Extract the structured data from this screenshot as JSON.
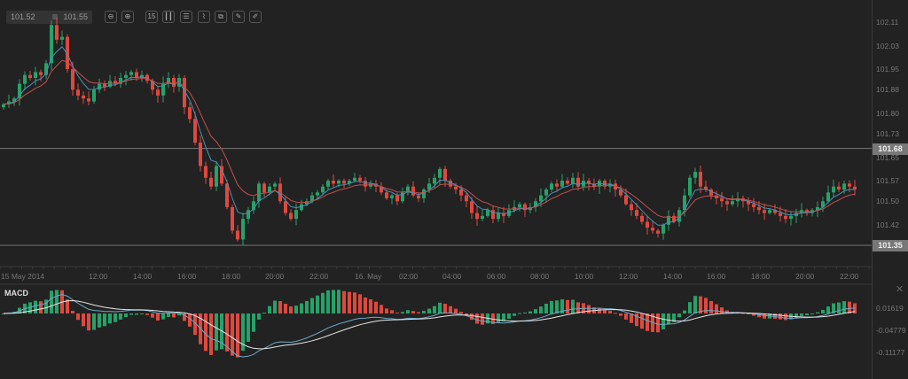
{
  "toolbar": {
    "bid": "101.52",
    "ask": "101.55",
    "buttons": [
      {
        "name": "zoom-out-icon",
        "glyph": "⊖"
      },
      {
        "name": "zoom-in-icon",
        "glyph": "⊕"
      },
      {
        "name": "timeframe-icon",
        "glyph": "15"
      },
      {
        "name": "candlestick-icon",
        "glyph": "┃┃"
      },
      {
        "name": "settings-sliders-icon",
        "glyph": "☰"
      },
      {
        "name": "indicator-icon",
        "glyph": "⌇"
      },
      {
        "name": "copy-icon",
        "glyph": "⧉"
      },
      {
        "name": "edit-icon",
        "glyph": "✎"
      },
      {
        "name": "draw-icon",
        "glyph": "✐"
      }
    ]
  },
  "chart_data": {
    "type": "candlestick",
    "interval": "15m",
    "ylim": [
      101.35,
      102.11
    ],
    "y_ticks": [
      "102.11",
      "102.03",
      "101.95",
      "101.88",
      "101.80",
      "101.73",
      "101.65",
      "101.57",
      "101.50",
      "101.42"
    ],
    "highlight_levels": [
      "101.68",
      "101.35"
    ],
    "x_ticks": [
      "15 May 2014",
      "12:00",
      "14:00",
      "16:00",
      "18:00",
      "20:00",
      "22:00",
      "16. May",
      "02:00",
      "04:00",
      "06:00",
      "08:00",
      "10:00",
      "12:00",
      "14:00",
      "16:00",
      "18:00",
      "20:00",
      "22:00"
    ],
    "colors": {
      "up": "#26a269",
      "down": "#e0483e",
      "ma_fast": "#4a90b8",
      "ma_slow": "#c0504d",
      "macd_line": "#6fa8c8",
      "signal_line": "#e6e6e6"
    },
    "closes": [
      101.83,
      101.84,
      101.85,
      101.9,
      101.93,
      101.92,
      101.94,
      101.93,
      101.97,
      102.1,
      102.05,
      102.06,
      101.95,
      101.88,
      101.86,
      101.85,
      101.84,
      101.88,
      101.9,
      101.89,
      101.91,
      101.9,
      101.92,
      101.93,
      101.94,
      101.92,
      101.93,
      101.91,
      101.88,
      101.86,
      101.9,
      101.92,
      101.89,
      101.92,
      101.82,
      101.78,
      101.7,
      101.62,
      101.58,
      101.55,
      101.62,
      101.56,
      101.48,
      101.4,
      101.37,
      101.44,
      101.47,
      101.5,
      101.56,
      101.53,
      101.55,
      101.56,
      101.5,
      101.46,
      101.44,
      101.47,
      101.49,
      101.5,
      101.52,
      101.53,
      101.55,
      101.57,
      101.56,
      101.57,
      101.56,
      101.57,
      101.58,
      101.57,
      101.55,
      101.56,
      101.55,
      101.53,
      101.51,
      101.52,
      101.5,
      101.53,
      101.55,
      101.52,
      101.51,
      101.54,
      101.56,
      101.58,
      101.61,
      101.57,
      101.55,
      101.54,
      101.52,
      101.5,
      101.46,
      101.44,
      101.45,
      101.47,
      101.44,
      101.46,
      101.45,
      101.47,
      101.48,
      101.49,
      101.47,
      101.48,
      101.5,
      101.52,
      101.54,
      101.56,
      101.55,
      101.57,
      101.56,
      101.58,
      101.55,
      101.57,
      101.56,
      101.55,
      101.57,
      101.55,
      101.56,
      101.54,
      101.52,
      101.49,
      101.47,
      101.45,
      101.43,
      101.41,
      101.4,
      101.39,
      101.42,
      101.45,
      101.43,
      101.47,
      101.52,
      101.58,
      101.6,
      101.55,
      101.54,
      101.52,
      101.51,
      101.5,
      101.49,
      101.5,
      101.51,
      101.5,
      101.49,
      101.48,
      101.47,
      101.46,
      101.47,
      101.46,
      101.45,
      101.44,
      101.45,
      101.46,
      101.47,
      101.46,
      101.47,
      101.48,
      101.5,
      101.53,
      101.55,
      101.54,
      101.56,
      101.55,
      101.54
    ],
    "macd": {
      "title": "MACD",
      "y_ticks": [
        "0.01619",
        "-0.04779",
        "-0.11177"
      ]
    }
  }
}
